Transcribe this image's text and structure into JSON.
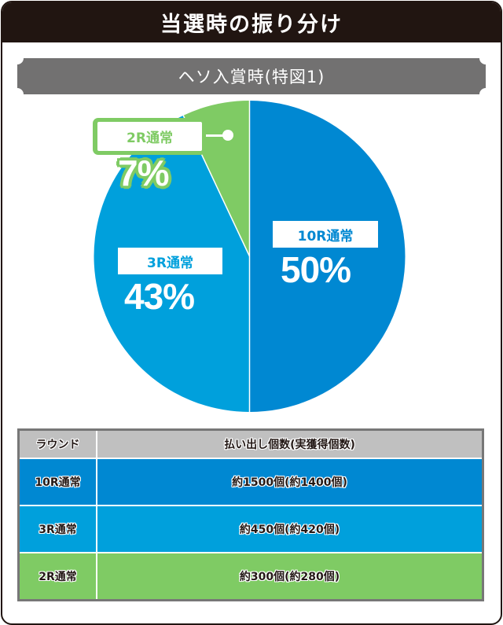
{
  "title": "当選時の振り分け",
  "subtitle": "ヘソ入賞時(特図1)",
  "colors": {
    "title_bg": "#211511",
    "ribbon_bg": "#727171",
    "slice_10r": "#0088d2",
    "slice_3r": "#00a0dc",
    "slice_2r": "#7fcb64",
    "table_header_bg": "#c0c0c0",
    "table_border": "#777777"
  },
  "chart_data": {
    "type": "pie",
    "title": "ヘソ入賞時(特図1)",
    "categories": [
      "10R通常",
      "3R通常",
      "2R通常"
    ],
    "values": [
      50,
      43,
      7
    ],
    "labels": [
      "50%",
      "43%",
      "7%"
    ],
    "colors": [
      "#0088d2",
      "#00a0dc",
      "#7fcb64"
    ],
    "start_angle": "12 o'clock, clockwise",
    "legend": "inline labels on slices"
  },
  "pie_labels": {
    "r10": {
      "name": "10R通常",
      "pct": "50%"
    },
    "r3": {
      "name": "3R通常",
      "pct": "43%"
    },
    "r2": {
      "name": "2R通常",
      "pct": "7%"
    }
  },
  "table": {
    "headers": [
      "ラウンド",
      "払い出し個数(実獲得個数)"
    ],
    "rows": [
      {
        "round": "10R通常",
        "payout": "約1500個(約1400個)",
        "color": "#0088d2"
      },
      {
        "round": "3R通常",
        "payout": "約450個(約420個)",
        "color": "#00a0dc"
      },
      {
        "round": "2R通常",
        "payout": "約300個(約280個)",
        "color": "#7fcb64"
      }
    ]
  }
}
